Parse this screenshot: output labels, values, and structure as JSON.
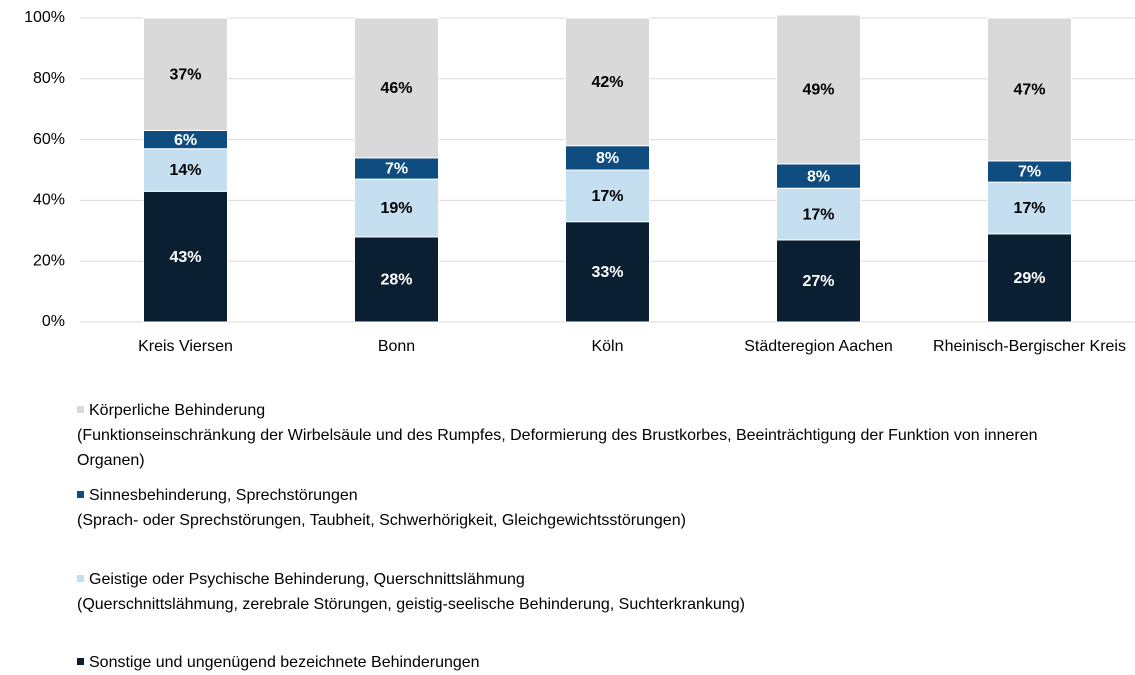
{
  "chart_data": {
    "type": "stacked_bar",
    "categories": [
      "Kreis Viersen",
      "Bonn",
      "Köln",
      "Städteregion Aachen",
      "Rheinisch-Bergischer Kreis"
    ],
    "series": [
      {
        "name": "Sonstige und ungenügend bezeichnete Behinderungen",
        "color": "#0b1f33",
        "label_color": "#ffffff",
        "values": [
          43,
          28,
          33,
          27,
          29
        ],
        "value_labels": [
          "43%",
          "28%",
          "33%",
          "27%",
          "29%"
        ]
      },
      {
        "name": "Geistige oder Psychische Behinderung, Querschnittslähmung",
        "description": "(Querschnittslähmung, zerebrale Störungen, geistig-seelische Behinderung, Suchterkrankung)",
        "color": "#c6dff0",
        "label_color": "#000000",
        "values": [
          14,
          19,
          17,
          17,
          17
        ],
        "value_labels": [
          "14%",
          "19%",
          "17%",
          "17%",
          "17%"
        ]
      },
      {
        "name": "Sinnesbehinderung, Sprechstörungen",
        "description": "(Sprach- oder Sprechstörungen, Taubheit, Schwerhörigkeit, Gleichgewichtsstörungen)",
        "color": "#0f4c7f",
        "label_color": "#ffffff",
        "values": [
          6,
          7,
          8,
          8,
          7
        ],
        "value_labels": [
          "6%",
          "7%",
          "8%",
          "8%",
          "7%"
        ]
      },
      {
        "name": "Körperliche Behinderung",
        "description": "(Funktionseinschränkung der Wirbelsäule und des Rumpfes, Deformierung des Brustkorbes, Beeinträchtigung der Funktion von inneren Organen)",
        "color": "#d9d9d9",
        "label_color": "#000000",
        "values": [
          37,
          46,
          42,
          49,
          47
        ],
        "value_labels": [
          "37%",
          "46%",
          "42%",
          "49%",
          "47%"
        ]
      }
    ],
    "ylim": [
      0,
      100
    ],
    "yticks": [
      {
        "value": 0,
        "label": "0%"
      },
      {
        "value": 20,
        "label": "20%"
      },
      {
        "value": 40,
        "label": "40%"
      },
      {
        "value": 60,
        "label": "60%"
      },
      {
        "value": 80,
        "label": "80%"
      },
      {
        "value": 100,
        "label": "100%"
      }
    ],
    "grid": true
  }
}
